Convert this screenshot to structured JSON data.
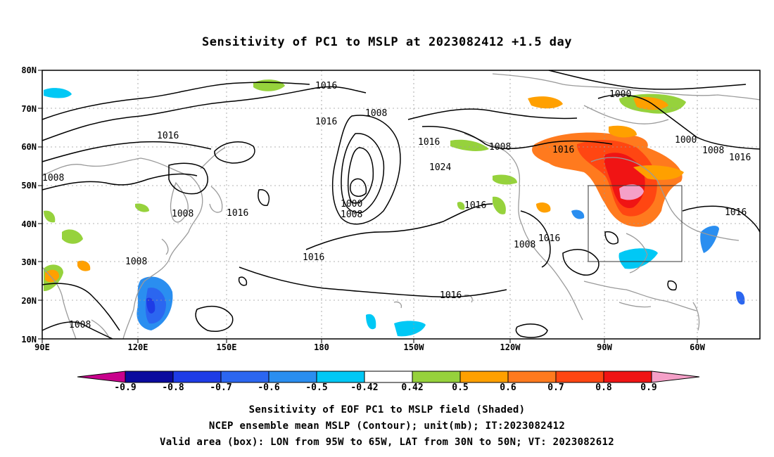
{
  "title": "Sensitivity of PC1 to MSLP at 2023082412 +1.5 day",
  "lat_labels": [
    "80N",
    "70N",
    "60N",
    "50N",
    "40N",
    "30N",
    "20N",
    "10N"
  ],
  "lon_labels": [
    "90E",
    "120E",
    "150E",
    "180",
    "150W",
    "120W",
    "90W",
    "60W"
  ],
  "contour_labels": [
    "1016",
    "1016",
    "1008",
    "1016",
    "1016",
    "1008",
    "1024",
    "1000",
    "1008",
    "1000",
    "1000",
    "1016",
    "1008",
    "1016",
    "1008",
    "1016",
    "1008",
    "1016",
    "1008",
    "1016",
    "1016",
    "1008",
    "1008",
    "1016"
  ],
  "colorbar": {
    "labels": [
      "-0.9",
      "-0.8",
      "-0.7",
      "-0.6",
      "-0.5",
      "-0.42",
      "0.42",
      "0.5",
      "0.6",
      "0.7",
      "0.8",
      "0.9"
    ],
    "colors": [
      "#c8008c",
      "#0a0a9e",
      "#1e3ce6",
      "#2b66f0",
      "#2a8ef0",
      "#00c8f5",
      "#ffffff",
      "#96d23c",
      "#ffa000",
      "#ff7a1e",
      "#ff4612",
      "#f01414",
      "#f5a0c8"
    ]
  },
  "valid_box": {
    "lon_from": "95W",
    "lon_to": "65W",
    "lat_from": "30N",
    "lat_to": "50N"
  },
  "captions": [
    "Sensitivity of EOF PC1 to MSLP field (Shaded)",
    "NCEP ensemble mean MSLP (Contour); unit(mb); IT:2023082412",
    "Valid area (box): LON from 95W to 65W, LAT from 30N to 50N; VT: 2023082612"
  ]
}
